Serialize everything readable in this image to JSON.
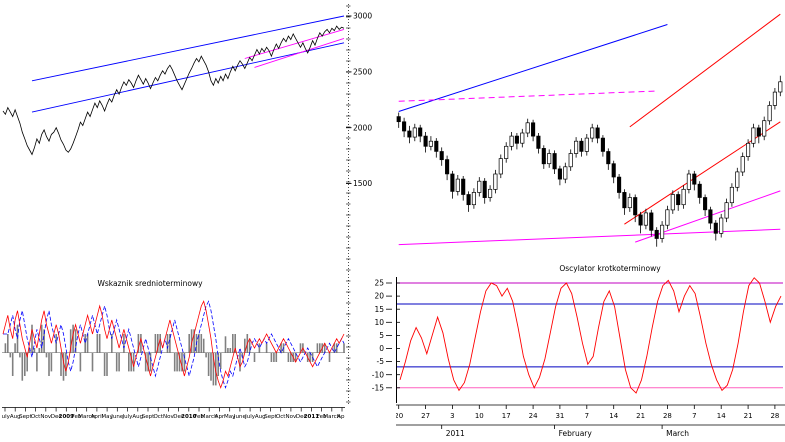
{
  "meta": {
    "background_color": "#ffffff",
    "description": "Technical analysis screen: long-term price line chart with trend channel and medium-term oscillator (left), daily candlestick chart with trendlines and short-term oscillator (right)"
  },
  "chart_data": [
    {
      "id": "longterm_price",
      "type": "line",
      "title": "",
      "ylim": [
        1030,
        3090
      ],
      "y_axis_labels": [
        3000,
        2500,
        2000,
        1500
      ],
      "x_axis": {
        "labels": [
          "July",
          "Aug",
          "Sept",
          "Oct",
          "Nov",
          "Dec",
          "2009",
          "Feb",
          "March",
          "April",
          "May",
          "June",
          "July",
          "Aug",
          "Sept",
          "Oct",
          "Nov",
          "Dec",
          "2010",
          "Feb",
          "March",
          "Apr",
          "May",
          "June",
          "July",
          "Aug",
          "Sept",
          "Oct",
          "Nov",
          "Dec",
          "2011",
          "Feb",
          "March",
          "Apr"
        ]
      },
      "series": [
        {
          "name": "price",
          "color": "#000000",
          "values": [
            2150,
            2120,
            2180,
            2140,
            2100,
            2160,
            2100,
            2040,
            1960,
            1900,
            1840,
            1800,
            1760,
            1820,
            1900,
            1860,
            1940,
            1980,
            1920,
            1880,
            1940,
            1960,
            2000,
            1950,
            1890,
            1850,
            1800,
            1780,
            1810,
            1860,
            1920,
            1980,
            2050,
            2020,
            2080,
            2140,
            2100,
            2160,
            2220,
            2180,
            2240,
            2200,
            2150,
            2210,
            2260,
            2230,
            2290,
            2340,
            2300,
            2360,
            2410,
            2380,
            2430,
            2400,
            2360,
            2420,
            2470,
            2430,
            2390,
            2440,
            2400,
            2350,
            2400,
            2450,
            2420,
            2470,
            2510,
            2480,
            2530,
            2560,
            2520,
            2470,
            2420,
            2380,
            2340,
            2390,
            2440,
            2490,
            2530,
            2580,
            2620,
            2590,
            2640,
            2600,
            2560,
            2500,
            2420,
            2380,
            2440,
            2400,
            2460,
            2420,
            2480,
            2440,
            2500,
            2550,
            2510,
            2560,
            2600,
            2570,
            2530,
            2580,
            2630,
            2600,
            2650,
            2700,
            2660,
            2710,
            2680,
            2720,
            2690,
            2640,
            2700,
            2750,
            2710,
            2760,
            2800,
            2770,
            2820,
            2790,
            2840,
            2800,
            2760,
            2720,
            2760,
            2710,
            2670,
            2720,
            2780,
            2740,
            2800,
            2850,
            2820,
            2860,
            2880,
            2850,
            2890,
            2870,
            2910,
            2880,
            2900,
            2890
          ]
        }
      ],
      "trendlines": [
        {
          "name": "channel-upper",
          "color": "#0000ff",
          "from": [
            12,
            2420
          ],
          "to": [
            141,
            3000
          ],
          "dash": ""
        },
        {
          "name": "channel-lower",
          "color": "#0000ff",
          "from": [
            12,
            2140
          ],
          "to": [
            141,
            2760
          ],
          "dash": ""
        },
        {
          "name": "magenta-trend-upper",
          "color": "#ff00ff",
          "from": [
            100,
            2620
          ],
          "to": [
            141,
            2880
          ],
          "dash": ""
        },
        {
          "name": "magenta-trend-lower",
          "color": "#ff00ff",
          "from": [
            104,
            2540
          ],
          "to": [
            141,
            2800
          ],
          "dash": ""
        }
      ]
    },
    {
      "id": "medium_term_oscillator",
      "type": "line+histogram",
      "title": "Wskaznik srednioterminowy",
      "ylim": [
        -22,
        26
      ],
      "series": [
        {
          "name": "oscillator",
          "color": "#ff0000",
          "values": [
            8,
            12,
            16,
            10,
            6,
            14,
            18,
            12,
            6,
            2,
            -2,
            4,
            10,
            6,
            2,
            8,
            14,
            18,
            12,
            8,
            4,
            8,
            12,
            8,
            2,
            -4,
            -8,
            -4,
            2,
            8,
            12,
            8,
            4,
            8,
            12,
            16,
            12,
            8,
            12,
            16,
            20,
            16,
            10,
            6,
            10,
            14,
            10,
            6,
            2,
            6,
            10,
            6,
            2,
            -2,
            -6,
            -2,
            2,
            6,
            2,
            -2,
            -6,
            -10,
            -6,
            -2,
            2,
            6,
            2,
            6,
            10,
            14,
            10,
            6,
            2,
            -2,
            -6,
            -10,
            -6,
            -2,
            4,
            8,
            12,
            16,
            20,
            22,
            18,
            12,
            6,
            -2,
            -8,
            -12,
            -15,
            -12,
            -8,
            -10,
            -6,
            -2,
            2,
            -2,
            -6,
            -4,
            0,
            4,
            6,
            4,
            2,
            4,
            6,
            4,
            6,
            8,
            6,
            4,
            2,
            0,
            2,
            4,
            6,
            4,
            2,
            0,
            -2,
            -4,
            -2,
            0,
            2,
            0,
            -2,
            -4,
            -6,
            -4,
            -2,
            0,
            2,
            4,
            2,
            0,
            2,
            4,
            6,
            4,
            6,
            8
          ]
        }
      ],
      "signal": {
        "name": "signal",
        "color": "#0000ff",
        "lag": 2,
        "derived": "oscillator shifted by lag"
      },
      "histogram": {
        "name": "divergence",
        "color": "#808080",
        "derived": "oscillator minus signal"
      }
    },
    {
      "id": "daily_candlesticks",
      "type": "candlestick",
      "title": "",
      "ylim": [
        2530,
        3030
      ],
      "candles": [
        [
          2810,
          2818,
          2788,
          2800
        ],
        [
          2800,
          2808,
          2770,
          2782
        ],
        [
          2782,
          2792,
          2758,
          2770
        ],
        [
          2770,
          2796,
          2762,
          2788
        ],
        [
          2788,
          2794,
          2760,
          2772
        ],
        [
          2772,
          2780,
          2740,
          2752
        ],
        [
          2752,
          2772,
          2744,
          2762
        ],
        [
          2762,
          2768,
          2730,
          2742
        ],
        [
          2742,
          2750,
          2714,
          2726
        ],
        [
          2726,
          2734,
          2686,
          2698
        ],
        [
          2698,
          2704,
          2650,
          2664
        ],
        [
          2664,
          2696,
          2656,
          2688
        ],
        [
          2688,
          2694,
          2646,
          2658
        ],
        [
          2658,
          2664,
          2624,
          2638
        ],
        [
          2638,
          2670,
          2630,
          2662
        ],
        [
          2662,
          2692,
          2654,
          2684
        ],
        [
          2684,
          2690,
          2640,
          2652
        ],
        [
          2652,
          2676,
          2644,
          2668
        ],
        [
          2668,
          2706,
          2660,
          2698
        ],
        [
          2698,
          2736,
          2690,
          2728
        ],
        [
          2728,
          2760,
          2720,
          2752
        ],
        [
          2752,
          2780,
          2744,
          2772
        ],
        [
          2772,
          2778,
          2746,
          2758
        ],
        [
          2758,
          2786,
          2750,
          2778
        ],
        [
          2778,
          2806,
          2770,
          2798
        ],
        [
          2798,
          2804,
          2762,
          2772
        ],
        [
          2772,
          2778,
          2738,
          2748
        ],
        [
          2748,
          2754,
          2708,
          2718
        ],
        [
          2718,
          2746,
          2710,
          2738
        ],
        [
          2738,
          2744,
          2698,
          2708
        ],
        [
          2708,
          2714,
          2676,
          2688
        ],
        [
          2688,
          2720,
          2680,
          2712
        ],
        [
          2712,
          2746,
          2704,
          2738
        ],
        [
          2738,
          2770,
          2730,
          2762
        ],
        [
          2762,
          2768,
          2732,
          2742
        ],
        [
          2742,
          2776,
          2734,
          2768
        ],
        [
          2768,
          2796,
          2760,
          2788
        ],
        [
          2788,
          2794,
          2758,
          2768
        ],
        [
          2768,
          2774,
          2732,
          2742
        ],
        [
          2742,
          2748,
          2706,
          2718
        ],
        [
          2718,
          2724,
          2680,
          2692
        ],
        [
          2692,
          2698,
          2650,
          2662
        ],
        [
          2662,
          2668,
          2618,
          2632
        ],
        [
          2632,
          2660,
          2624,
          2652
        ],
        [
          2652,
          2658,
          2604,
          2618
        ],
        [
          2618,
          2624,
          2582,
          2598
        ],
        [
          2598,
          2630,
          2590,
          2622
        ],
        [
          2622,
          2628,
          2576,
          2588
        ],
        [
          2588,
          2594,
          2556,
          2572
        ],
        [
          2572,
          2606,
          2564,
          2598
        ],
        [
          2598,
          2636,
          2590,
          2628
        ],
        [
          2628,
          2666,
          2620,
          2658
        ],
        [
          2658,
          2664,
          2626,
          2638
        ],
        [
          2638,
          2676,
          2630,
          2668
        ],
        [
          2668,
          2706,
          2660,
          2698
        ],
        [
          2698,
          2704,
          2666,
          2678
        ],
        [
          2678,
          2684,
          2640,
          2652
        ],
        [
          2652,
          2658,
          2616,
          2628
        ],
        [
          2628,
          2634,
          2590,
          2602
        ],
        [
          2602,
          2608,
          2568,
          2582
        ],
        [
          2582,
          2620,
          2574,
          2612
        ],
        [
          2612,
          2650,
          2604,
          2642
        ],
        [
          2642,
          2680,
          2634,
          2672
        ],
        [
          2672,
          2710,
          2664,
          2702
        ],
        [
          2702,
          2740,
          2694,
          2732
        ],
        [
          2732,
          2766,
          2724,
          2758
        ],
        [
          2758,
          2796,
          2750,
          2788
        ],
        [
          2788,
          2794,
          2758,
          2772
        ],
        [
          2772,
          2810,
          2764,
          2802
        ],
        [
          2802,
          2840,
          2794,
          2832
        ],
        [
          2832,
          2866,
          2824,
          2858
        ],
        [
          2858,
          2890,
          2850,
          2878
        ]
      ],
      "candle_colors": {
        "up_fill": "#ffffff",
        "down_fill": "#000000",
        "stroke": "#000000"
      },
      "x_axis": {
        "week_labels": [
          "20",
          "27",
          "3",
          "10",
          "17",
          "24",
          "31",
          "7",
          "14",
          "21",
          "28",
          "7",
          "14",
          "21",
          "28"
        ],
        "month_labels": [
          {
            "label": "2011",
            "index": 8
          },
          {
            "label": "February",
            "index": 29
          },
          {
            "label": "March",
            "index": 49
          }
        ]
      },
      "trendlines": [
        {
          "name": "longterm-channel-line",
          "color": "#0000ff",
          "from": [
            0,
            2820
          ],
          "to": [
            50,
            2990
          ],
          "dash": ""
        },
        {
          "name": "resistance-dashed",
          "color": "#ff00ff",
          "from": [
            0,
            2840
          ],
          "to": [
            48,
            2860
          ],
          "dash": "6,4"
        },
        {
          "name": "support-line",
          "color": "#ff00ff",
          "from": [
            0,
            2560
          ],
          "to": [
            71,
            2590
          ],
          "dash": ""
        },
        {
          "name": "inner-support-line",
          "color": "#ff00ff",
          "from": [
            44,
            2565
          ],
          "to": [
            71,
            2665
          ],
          "dash": ""
        },
        {
          "name": "steep-channel-upper",
          "color": "#ff0000",
          "from": [
            43,
            2790
          ],
          "to": [
            71,
            3010
          ],
          "dash": ""
        },
        {
          "name": "steep-channel-lower",
          "color": "#ff0000",
          "from": [
            42,
            2600
          ],
          "to": [
            71,
            2800
          ],
          "dash": ""
        }
      ]
    },
    {
      "id": "short_term_oscillator",
      "type": "line",
      "title": "Oscylator krotkoterminowy",
      "ylim": [
        -20.8,
        27.3
      ],
      "y_axis_labels": [
        25,
        20,
        15,
        10,
        5,
        0,
        -5,
        -10,
        -15
      ],
      "guides": [
        {
          "value": 25,
          "color": "#c000c0"
        },
        {
          "value": 17,
          "color": "#0000c0"
        },
        {
          "value": -7,
          "color": "#0000c0"
        },
        {
          "value": -15,
          "color": "#ff60c0"
        }
      ],
      "series": [
        {
          "name": "oscillator",
          "color": "#ff0000",
          "values": [
            -12,
            -5,
            3,
            8,
            4,
            -2,
            5,
            12,
            6,
            -4,
            -12,
            -16,
            -13,
            -6,
            4,
            14,
            22,
            25,
            24,
            20,
            23,
            18,
            8,
            -3,
            -10,
            -15,
            -11,
            -4,
            6,
            16,
            23,
            25,
            21,
            12,
            2,
            -6,
            -3,
            8,
            18,
            22,
            16,
            4,
            -8,
            -15,
            -17,
            -12,
            -3,
            8,
            18,
            24,
            26,
            22,
            14,
            20,
            24,
            21,
            12,
            2,
            -6,
            -12,
            -16,
            -14,
            -8,
            2,
            14,
            24,
            27,
            25,
            18,
            10,
            16,
            20
          ]
        }
      ]
    }
  ]
}
